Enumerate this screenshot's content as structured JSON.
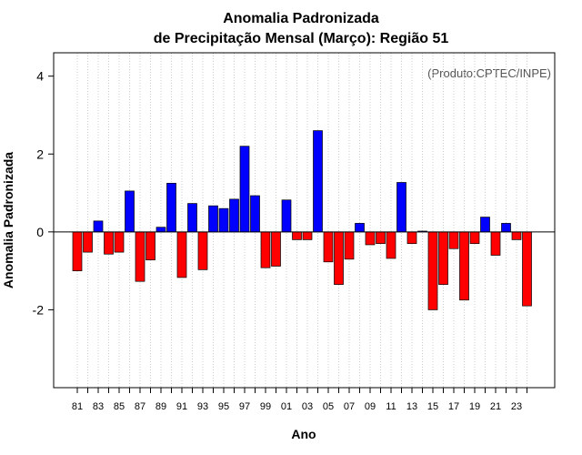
{
  "chart_data": {
    "type": "bar",
    "title_line1": "Anomalia Padronizada",
    "title_line2": "de Precipitação Mensal (Março): Região 51",
    "xlabel": "Ano",
    "ylabel": "Anomalia Padronizada",
    "credit": "(Produto:CPTEC/INPE)",
    "ylim": [
      -4,
      4.6
    ],
    "yticks": [
      4,
      2,
      0,
      -2
    ],
    "ytick_labels": [
      "4",
      "2",
      "0",
      "-2"
    ],
    "x_start_year": 1981,
    "xtick_labels": [
      "81",
      "83",
      "85",
      "87",
      "89",
      "91",
      "93",
      "95",
      "97",
      "99",
      "01",
      "03",
      "05",
      "07",
      "09",
      "11",
      "13",
      "15",
      "17",
      "19",
      "21",
      "23"
    ],
    "values": [
      -1.0,
      -0.52,
      0.28,
      -0.57,
      -0.52,
      1.05,
      -1.27,
      -0.72,
      0.12,
      1.25,
      -1.17,
      0.73,
      -0.97,
      0.67,
      0.6,
      0.84,
      2.2,
      0.93,
      -0.92,
      -0.88,
      0.82,
      -0.2,
      -0.2,
      2.6,
      -0.77,
      -1.35,
      -0.7,
      0.22,
      -0.33,
      -0.3,
      -0.68,
      1.27,
      -0.3,
      0.02,
      -2.0,
      -1.35,
      -0.43,
      -1.75,
      -0.3,
      0.38,
      -0.6,
      0.22,
      -0.2,
      -1.9
    ],
    "colors": {
      "positive": "#0000ff",
      "negative": "#ff0000",
      "grid": "#cccccc",
      "credit": "#555555"
    },
    "grid": true
  }
}
